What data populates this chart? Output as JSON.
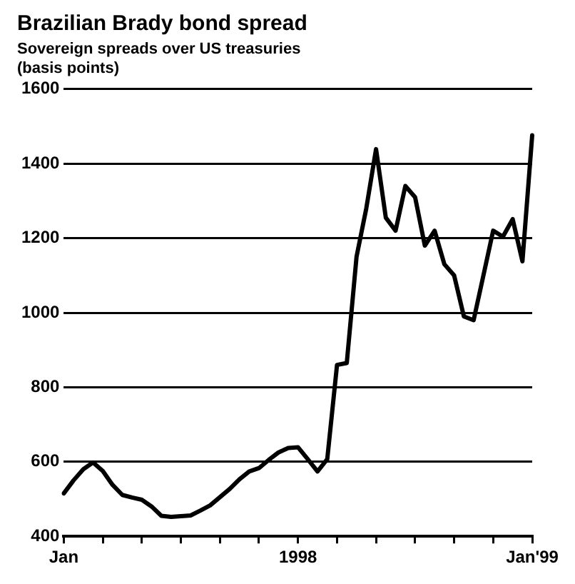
{
  "chart_data": {
    "type": "line",
    "title": "Brazilian Brady bond spread",
    "subtitle": "Sovereign spreads over US treasuries",
    "ylabel": "(basis points)",
    "categories": [
      "Jan",
      null,
      null,
      null,
      null,
      null,
      null,
      null,
      null,
      null,
      null,
      null,
      null,
      null,
      null,
      null,
      null,
      null,
      null,
      null,
      null,
      null,
      null,
      null,
      "1998",
      null,
      null,
      null,
      null,
      null,
      null,
      null,
      null,
      null,
      null,
      null,
      null,
      null,
      null,
      null,
      null,
      null,
      null,
      null,
      null,
      null,
      null,
      null,
      "Jan'99"
    ],
    "series": [
      {
        "color": "#000000",
        "values": [
          515,
          550,
          580,
          598,
          575,
          538,
          511,
          504,
          498,
          480,
          455,
          452,
          454,
          456,
          469,
          483,
          505,
          527,
          553,
          574,
          583,
          605,
          625,
          637,
          639,
          607,
          574,
          607,
          860,
          865,
          1150,
          1280,
          1439,
          1255,
          1220,
          1340,
          1310,
          1180,
          1220,
          1130,
          1100,
          990,
          980,
          1100,
          1220,
          1204,
          1251,
          1138,
          1476
        ]
      }
    ],
    "ylim": [
      400,
      1600
    ],
    "yticks": [
      400,
      600,
      800,
      1000,
      1200,
      1400,
      1600
    ],
    "grid": "y",
    "legend": false,
    "marker": "none",
    "line_style": "solid"
  }
}
